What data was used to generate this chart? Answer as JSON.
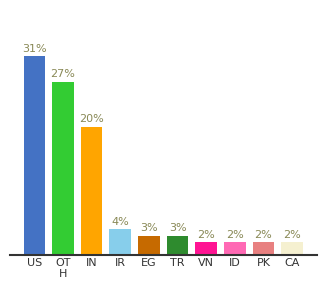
{
  "categories": [
    "US",
    "OT\nH",
    "IN",
    "IR",
    "EG",
    "TR",
    "VN",
    "ID",
    "PK",
    "CA"
  ],
  "values": [
    31,
    27,
    20,
    4,
    3,
    3,
    2,
    2,
    2,
    2
  ],
  "bar_colors": [
    "#4472c4",
    "#33cc33",
    "#ffa500",
    "#87ceeb",
    "#c66a00",
    "#2e8b2e",
    "#ff1493",
    "#ff69b4",
    "#e88080",
    "#f5f0d0"
  ],
  "title": "",
  "ylabel": "",
  "xlabel": "",
  "ylim": [
    0,
    36
  ],
  "background_color": "#ffffff",
  "label_fontsize": 8,
  "tick_fontsize": 8
}
